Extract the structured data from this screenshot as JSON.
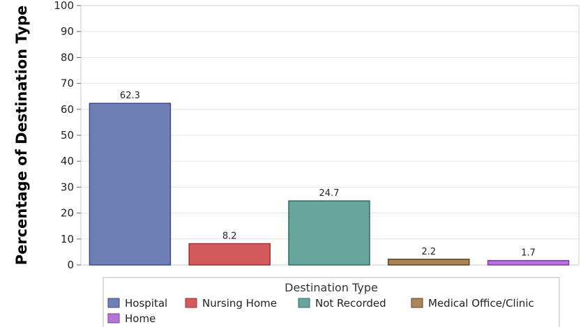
{
  "chart_data": {
    "type": "bar",
    "title": "",
    "xlabel": "",
    "ylabel": "Percentage of Destination Type",
    "ylim": [
      0,
      100
    ],
    "yticks": [
      0,
      10,
      20,
      30,
      40,
      50,
      60,
      70,
      80,
      90,
      100
    ],
    "grid": true,
    "categories": [
      "Hospital",
      "Nursing Home",
      "Not Recorded",
      "Medical Office/Clinic",
      "Home"
    ],
    "values": [
      62.3,
      8.2,
      24.7,
      2.2,
      1.7
    ],
    "data_labels": [
      "62.3",
      "8.2",
      "24.7",
      "2.2",
      "1.7"
    ],
    "colors": [
      "#6f7fb5",
      "#d35b5b",
      "#67a59c",
      "#a98558",
      "#b675d6"
    ],
    "edge_colors": [
      "#3d4a87",
      "#9b2e2e",
      "#2f6e63",
      "#5e4220",
      "#7d3ca0"
    ],
    "legend": {
      "title": "Destination Type",
      "placement": "bottom",
      "entries": [
        "Hospital",
        "Nursing Home",
        "Not Recorded",
        "Medical Office/Clinic",
        "Home"
      ]
    }
  }
}
